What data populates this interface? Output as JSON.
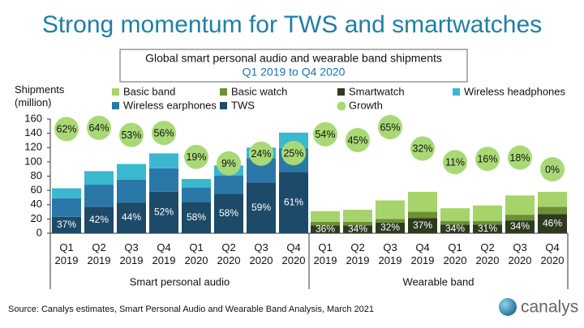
{
  "chart_data": {
    "type": "bar",
    "stacked": true,
    "title": "Strong momentum for TWS and smartwatches",
    "subtitle": [
      "Global smart personal audio and wearable band shipments",
      "Q1 2019 to Q4 2020"
    ],
    "ylabel": "Shipments (million)",
    "ylim": [
      0,
      160
    ],
    "yticks": [
      0,
      20,
      40,
      60,
      80,
      100,
      120,
      140,
      160
    ],
    "groups": [
      {
        "name": "Smart personal audio",
        "categories": [
          "Q1 2019",
          "Q2 2019",
          "Q3 2019",
          "Q4 2019",
          "Q1 2020",
          "Q2 2020",
          "Q3 2020",
          "Q4 2020"
        ],
        "series": [
          {
            "name": "Wireless headphones",
            "color": "#3ab8cf",
            "values": [
              14,
              19,
              22,
              21,
              12,
              14,
              15,
              22
            ]
          },
          {
            "name": "Wireless earphones",
            "color": "#2a78a8",
            "values": [
              26,
              31,
              32,
              33,
              20,
              26,
              34,
              33
            ]
          },
          {
            "name": "TWS",
            "color": "#1d4a68",
            "values": [
              23,
              37,
              43,
              58,
              44,
              55,
              71,
              86
            ]
          }
        ],
        "share": {
          "values": [
            37,
            42,
            44,
            52,
            58,
            58,
            59,
            61
          ],
          "value_labels": [
            "37%",
            "42%",
            "44%",
            "52%",
            "58%",
            "58%",
            "59%",
            "61%"
          ]
        }
      },
      {
        "name": "Wearable band",
        "categories": [
          "Q1 2019",
          "Q2 2019",
          "Q3 2019",
          "Q4 2019",
          "Q1 2020",
          "Q2 2020",
          "Q3 2020",
          "Q4 2020"
        ],
        "series": [
          {
            "name": "Basic band",
            "color": "#a6d46b",
            "values": [
              15,
              17,
              26,
              28,
              18,
              22,
              27,
              21
            ]
          },
          {
            "name": "Basic watch",
            "color": "#6b9036",
            "values": [
              5,
              5,
              5,
              9,
              5,
              5,
              8,
              10
            ]
          },
          {
            "name": "Smartwatch",
            "color": "#2e3a1f",
            "values": [
              11,
              11,
              15,
              21,
              12,
              12,
              18,
              27
            ]
          }
        ],
        "share": {
          "values": [
            36,
            34,
            32,
            37,
            34,
            31,
            34,
            46
          ],
          "value_labels": [
            "36%",
            "34%",
            "32%",
            "37%",
            "34%",
            "31%",
            "34%",
            "46%"
          ]
        }
      }
    ],
    "growth": {
      "name": "Growth",
      "color": "#a9d977",
      "values": [
        62,
        64,
        53,
        56,
        19,
        9,
        24,
        25,
        54,
        45,
        65,
        32,
        11,
        16,
        18,
        0
      ],
      "value_labels": [
        "62%",
        "64%",
        "53%",
        "56%",
        "19%",
        "9%",
        "24%",
        "25%",
        "54%",
        "45%",
        "65%",
        "32%",
        "11%",
        "16%",
        "18%",
        "0%"
      ]
    },
    "source": "Source: Canalys estimates, Smart Personal Audio and Wearable Band Analysis, March 2021",
    "brand": "canalys"
  }
}
